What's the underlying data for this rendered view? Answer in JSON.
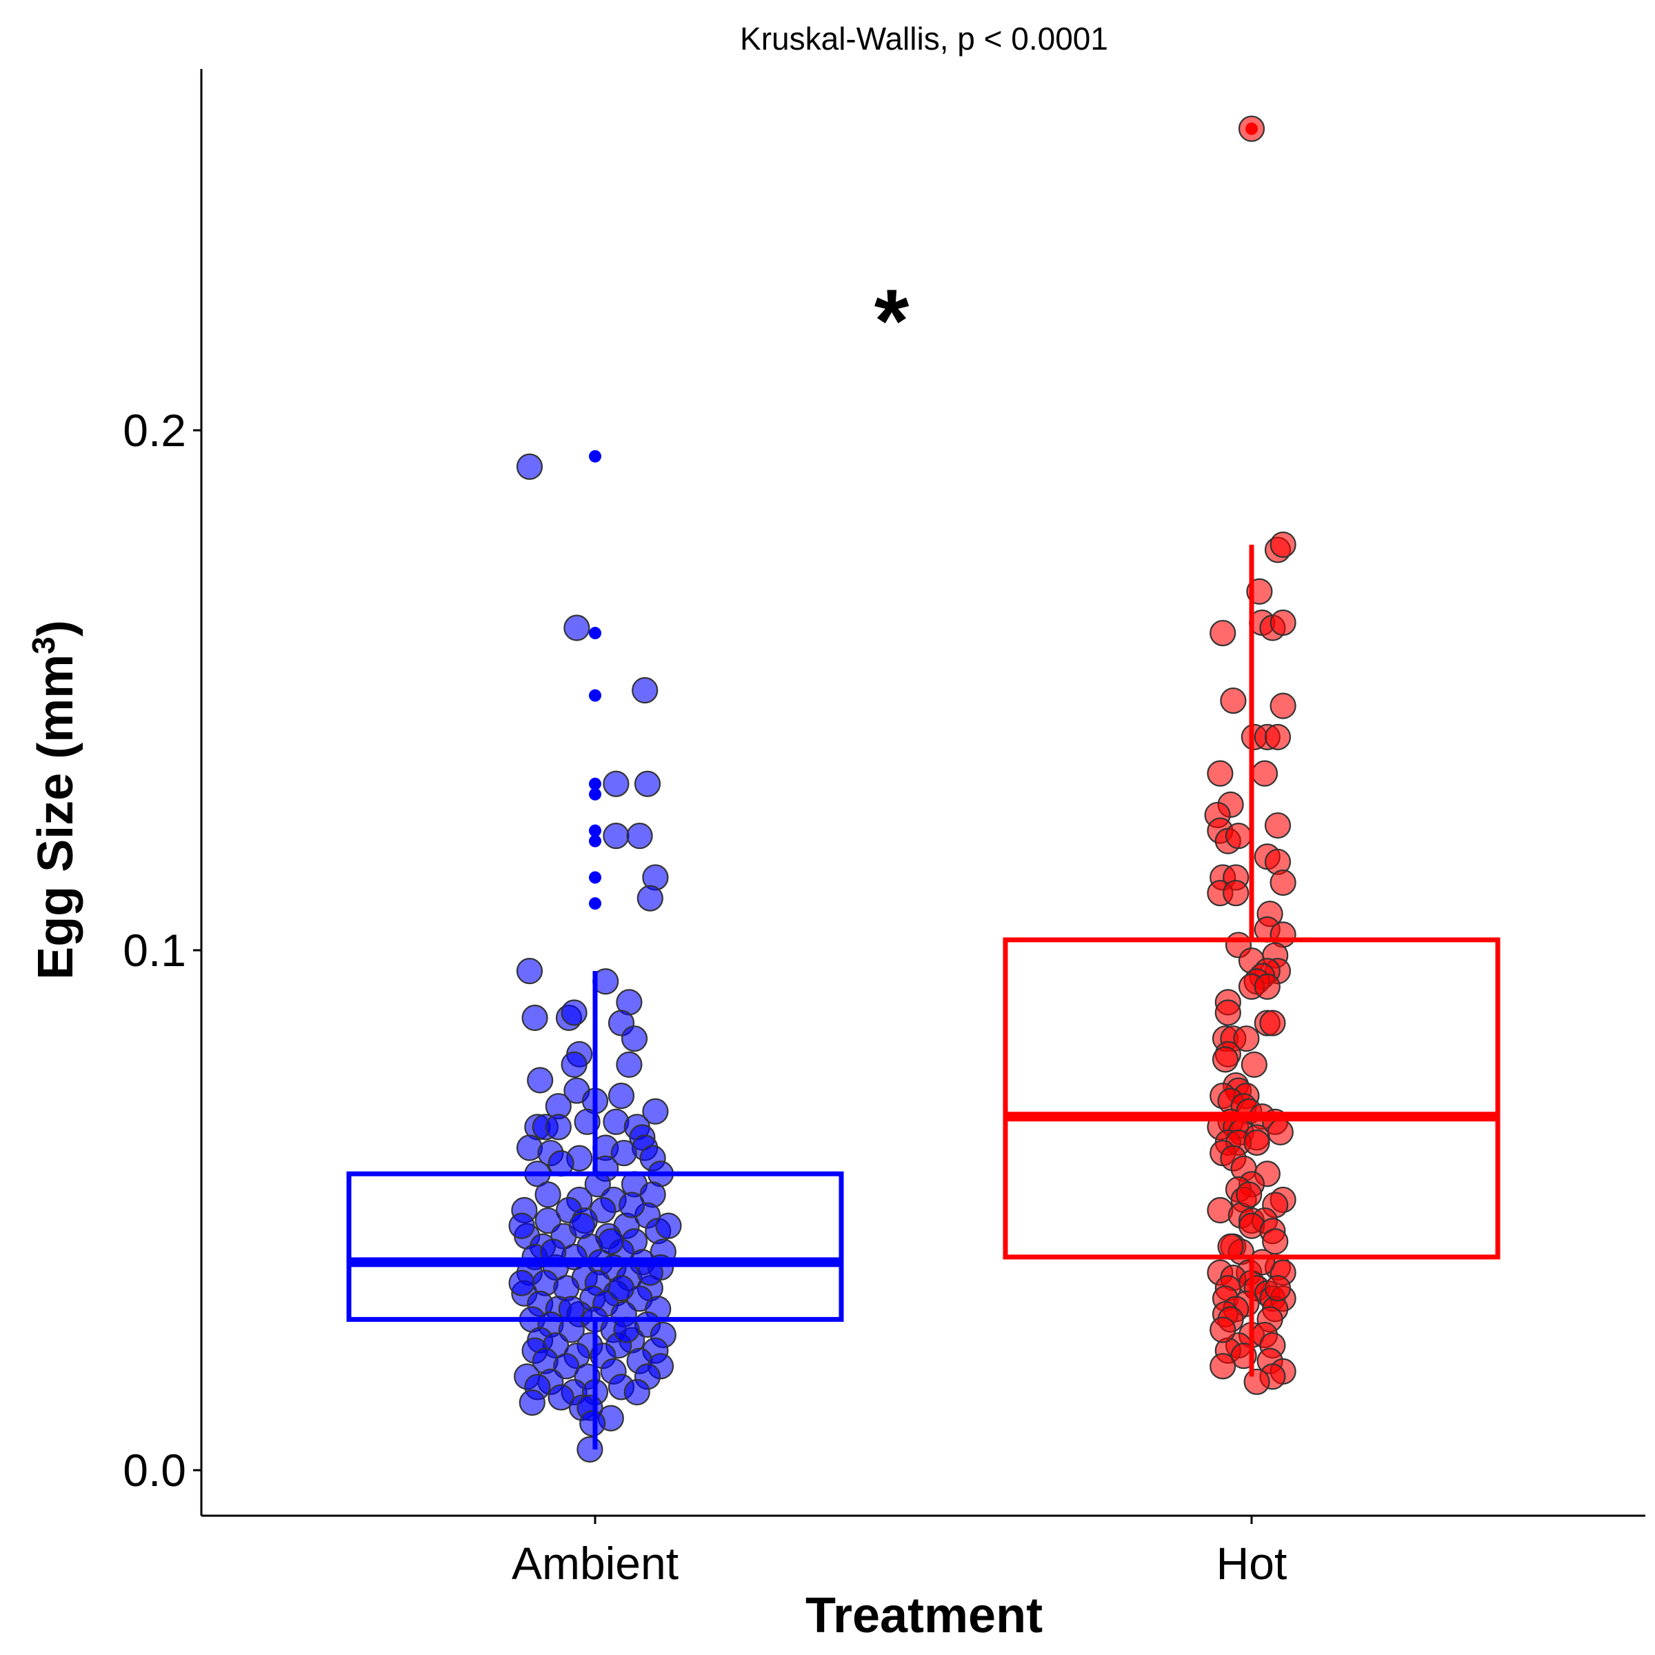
{
  "chart_data": {
    "type": "box",
    "subtitle": "Kruskal-Wallis, p < 0.0001",
    "significance_label": "*",
    "xlabel": "Treatment",
    "ylabel": "Egg Size (mm",
    "ylabel_superscript": "3",
    "ylabel_close": ")",
    "ylim": [
      -0.008,
      0.265
    ],
    "yticks": [
      0.0,
      0.1,
      0.2
    ],
    "ytick_labels": [
      "0.0",
      "0.1",
      "0.2"
    ],
    "categories": [
      "Ambient",
      "Hot"
    ],
    "groups": [
      {
        "name": "Ambient",
        "color": "#0000ff",
        "box": {
          "lower_whisker": 0.004,
          "q1": 0.029,
          "median": 0.04,
          "q3": 0.057,
          "upper_whisker": 0.096
        },
        "outliers": [
          0.195,
          0.161,
          0.149,
          0.132,
          0.13,
          0.123,
          0.121,
          0.114,
          0.109
        ],
        "points": [
          [
            -0.25,
            0.193
          ],
          [
            -0.07,
            0.162
          ],
          [
            0.19,
            0.15
          ],
          [
            0.08,
            0.132
          ],
          [
            0.2,
            0.132
          ],
          [
            0.08,
            0.122
          ],
          [
            0.17,
            0.122
          ],
          [
            0.23,
            0.114
          ],
          [
            0.21,
            0.11
          ],
          [
            -0.25,
            0.096
          ],
          [
            0.04,
            0.094
          ],
          [
            -0.23,
            0.087
          ],
          [
            -0.1,
            0.087
          ],
          [
            0.13,
            0.09
          ],
          [
            -0.08,
            0.088
          ],
          [
            0.1,
            0.086
          ],
          [
            0.15,
            0.083
          ],
          [
            -0.06,
            0.08
          ],
          [
            -0.08,
            0.078
          ],
          [
            0.13,
            0.078
          ],
          [
            -0.21,
            0.075
          ],
          [
            -0.07,
            0.073
          ],
          [
            0.1,
            0.072
          ],
          [
            0.0,
            0.071
          ],
          [
            -0.14,
            0.07
          ],
          [
            0.23,
            0.069
          ],
          [
            0.08,
            0.067
          ],
          [
            -0.03,
            0.067
          ],
          [
            -0.22,
            0.066
          ],
          [
            -0.19,
            0.066
          ],
          [
            -0.14,
            0.066
          ],
          [
            0.16,
            0.066
          ],
          [
            0.18,
            0.064
          ],
          [
            -0.25,
            0.062
          ],
          [
            0.04,
            0.062
          ],
          [
            0.19,
            0.062
          ],
          [
            -0.17,
            0.061
          ],
          [
            0.11,
            0.061
          ],
          [
            -0.06,
            0.06
          ],
          [
            0.22,
            0.06
          ],
          [
            -0.13,
            0.059
          ],
          [
            0.04,
            0.058
          ],
          [
            -0.22,
            0.057
          ],
          [
            0.25,
            0.057
          ],
          [
            0.01,
            0.055
          ],
          [
            0.15,
            0.055
          ],
          [
            -0.18,
            0.053
          ],
          [
            0.22,
            0.053
          ],
          [
            -0.06,
            0.052
          ],
          [
            0.07,
            0.052
          ],
          [
            -0.27,
            0.05
          ],
          [
            -0.1,
            0.05
          ],
          [
            0.03,
            0.05
          ],
          [
            0.2,
            0.049
          ],
          [
            -0.18,
            0.048
          ],
          [
            -0.04,
            0.048
          ],
          [
            0.12,
            0.047
          ],
          [
            0.24,
            0.046
          ],
          [
            -0.26,
            0.045
          ],
          [
            -0.12,
            0.045
          ],
          [
            0.05,
            0.045
          ],
          [
            0.15,
            0.044
          ],
          [
            -0.2,
            0.043
          ],
          [
            -0.02,
            0.043
          ],
          [
            0.1,
            0.042
          ],
          [
            0.26,
            0.042
          ],
          [
            -0.23,
            0.041
          ],
          [
            -0.08,
            0.041
          ],
          [
            0.02,
            0.04
          ],
          [
            0.18,
            0.04
          ],
          [
            -0.15,
            0.039
          ],
          [
            0.07,
            0.039
          ],
          [
            0.25,
            0.039
          ],
          [
            -0.25,
            0.038
          ],
          [
            -0.04,
            0.037
          ],
          [
            0.13,
            0.037
          ],
          [
            -0.19,
            0.036
          ],
          [
            0.01,
            0.036
          ],
          [
            0.21,
            0.035
          ],
          [
            -0.11,
            0.035
          ],
          [
            0.08,
            0.034
          ],
          [
            -0.27,
            0.034
          ],
          [
            -0.01,
            0.033
          ],
          [
            0.17,
            0.033
          ],
          [
            -0.21,
            0.032
          ],
          [
            0.04,
            0.032
          ],
          [
            0.24,
            0.031
          ],
          [
            -0.14,
            0.031
          ],
          [
            -0.06,
            0.03
          ],
          [
            0.11,
            0.03
          ],
          [
            -0.24,
            0.029
          ],
          [
            0.0,
            0.029
          ],
          [
            0.2,
            0.028
          ],
          [
            -0.17,
            0.028
          ],
          [
            0.07,
            0.027
          ],
          [
            -0.09,
            0.027
          ],
          [
            0.26,
            0.026
          ],
          [
            -0.21,
            0.025
          ],
          [
            0.14,
            0.025
          ],
          [
            -0.02,
            0.024
          ],
          [
            -0.15,
            0.024
          ],
          [
            0.09,
            0.024
          ],
          [
            -0.23,
            0.023
          ],
          [
            0.23,
            0.023
          ],
          [
            -0.07,
            0.022
          ],
          [
            0.03,
            0.022
          ],
          [
            0.17,
            0.021
          ],
          [
            -0.19,
            0.021
          ],
          [
            -0.11,
            0.02
          ],
          [
            0.25,
            0.02
          ],
          [
            0.07,
            0.019
          ],
          [
            -0.26,
            0.018
          ],
          [
            -0.03,
            0.018
          ],
          [
            0.2,
            0.018
          ],
          [
            -0.17,
            0.017
          ],
          [
            0.1,
            0.016
          ],
          [
            -0.22,
            0.016
          ],
          [
            -0.08,
            0.015
          ],
          [
            0.0,
            0.015
          ],
          [
            0.16,
            0.015
          ],
          [
            -0.13,
            0.014
          ],
          [
            -0.24,
            0.013
          ],
          [
            -0.05,
            0.012
          ],
          [
            -0.02,
            0.012
          ],
          [
            0.06,
            0.01
          ],
          [
            -0.01,
            0.009
          ],
          [
            -0.02,
            0.004
          ],
          [
            0.1,
            0.035
          ],
          [
            -0.05,
            0.047
          ],
          [
            0.14,
            0.051
          ],
          [
            -0.28,
            0.047
          ],
          [
            0.28,
            0.047
          ],
          [
            -0.09,
            0.031
          ],
          [
            0.12,
            0.027
          ],
          [
            -0.16,
            0.042
          ],
          [
            0.06,
            0.044
          ],
          [
            0.21,
            0.038
          ],
          [
            -0.28,
            0.036
          ]
        ]
      },
      {
        "name": "Hot",
        "color": "#ff0000",
        "box": {
          "lower_whisker": 0.018,
          "q1": 0.041,
          "median": 0.068,
          "q3": 0.102,
          "upper_whisker": 0.178
        },
        "outliers": [
          0.258
        ],
        "points": [
          [
            0.0,
            0.258
          ],
          [
            0.1,
            0.177
          ],
          [
            0.12,
            0.178
          ],
          [
            0.03,
            0.169
          ],
          [
            0.04,
            0.163
          ],
          [
            -0.11,
            0.161
          ],
          [
            0.08,
            0.162
          ],
          [
            0.12,
            0.163
          ],
          [
            -0.07,
            0.148
          ],
          [
            0.12,
            0.147
          ],
          [
            0.01,
            0.141
          ],
          [
            0.06,
            0.141
          ],
          [
            0.1,
            0.141
          ],
          [
            -0.12,
            0.134
          ],
          [
            0.05,
            0.134
          ],
          [
            -0.08,
            0.128
          ],
          [
            -0.13,
            0.126
          ],
          [
            0.1,
            0.124
          ],
          [
            -0.12,
            0.123
          ],
          [
            -0.09,
            0.121
          ],
          [
            -0.05,
            0.122
          ],
          [
            0.06,
            0.118
          ],
          [
            0.1,
            0.117
          ],
          [
            -0.11,
            0.114
          ],
          [
            -0.06,
            0.114
          ],
          [
            0.12,
            0.113
          ],
          [
            -0.12,
            0.111
          ],
          [
            -0.06,
            0.111
          ],
          [
            0.07,
            0.107
          ],
          [
            0.06,
            0.104
          ],
          [
            0.12,
            0.103
          ],
          [
            -0.05,
            0.101
          ],
          [
            0.09,
            0.099
          ],
          [
            0.0,
            0.098
          ],
          [
            0.1,
            0.096
          ],
          [
            0.06,
            0.096
          ],
          [
            0.04,
            0.095
          ],
          [
            0.02,
            0.094
          ],
          [
            0.0,
            0.093
          ],
          [
            0.06,
            0.093
          ],
          [
            -0.09,
            0.09
          ],
          [
            -0.09,
            0.088
          ],
          [
            0.06,
            0.086
          ],
          [
            0.08,
            0.086
          ],
          [
            -0.1,
            0.083
          ],
          [
            -0.07,
            0.083
          ],
          [
            -0.02,
            0.083
          ],
          [
            -0.09,
            0.08
          ],
          [
            -0.1,
            0.079
          ],
          [
            0.01,
            0.078
          ],
          [
            -0.06,
            0.074
          ],
          [
            -0.05,
            0.073
          ],
          [
            -0.11,
            0.072
          ],
          [
            -0.02,
            0.072
          ],
          [
            -0.08,
            0.071
          ],
          [
            -0.03,
            0.07
          ],
          [
            -0.01,
            0.069
          ],
          [
            0.04,
            0.068
          ],
          [
            -0.08,
            0.067
          ],
          [
            0.09,
            0.067
          ],
          [
            -0.12,
            0.066
          ],
          [
            -0.06,
            0.066
          ],
          [
            -0.04,
            0.065
          ],
          [
            0.02,
            0.064
          ],
          [
            0.11,
            0.065
          ],
          [
            -0.09,
            0.063
          ],
          [
            -0.05,
            0.063
          ],
          [
            0.02,
            0.063
          ],
          [
            -0.11,
            0.061
          ],
          [
            -0.07,
            0.06
          ],
          [
            -0.03,
            0.058
          ],
          [
            0.06,
            0.057
          ],
          [
            0.0,
            0.055
          ],
          [
            -0.05,
            0.054
          ],
          [
            0.12,
            0.052
          ],
          [
            -0.03,
            0.052
          ],
          [
            0.09,
            0.051
          ],
          [
            -0.12,
            0.05
          ],
          [
            -0.04,
            0.049
          ],
          [
            0.0,
            0.048
          ],
          [
            0.05,
            0.048
          ],
          [
            0.0,
            0.047
          ],
          [
            0.08,
            0.046
          ],
          [
            0.09,
            0.044
          ],
          [
            -0.07,
            0.043
          ],
          [
            -0.04,
            0.042
          ],
          [
            -0.08,
            0.043
          ],
          [
            0.1,
            0.039
          ],
          [
            -0.01,
            0.038
          ],
          [
            -0.12,
            0.038
          ],
          [
            0.12,
            0.038
          ],
          [
            -0.07,
            0.037
          ],
          [
            0.0,
            0.036
          ],
          [
            -0.09,
            0.035
          ],
          [
            0.02,
            0.035
          ],
          [
            0.06,
            0.034
          ],
          [
            0.08,
            0.033
          ],
          [
            -0.1,
            0.033
          ],
          [
            0.12,
            0.033
          ],
          [
            -0.02,
            0.032
          ],
          [
            -0.06,
            0.031
          ],
          [
            0.09,
            0.031
          ],
          [
            -0.1,
            0.03
          ],
          [
            0.07,
            0.029
          ],
          [
            -0.08,
            0.029
          ],
          [
            0.0,
            0.026
          ],
          [
            0.05,
            0.026
          ],
          [
            -0.05,
            0.024
          ],
          [
            0.08,
            0.024
          ],
          [
            -0.09,
            0.023
          ],
          [
            -0.03,
            0.022
          ],
          [
            0.07,
            0.021
          ],
          [
            -0.11,
            0.02
          ],
          [
            0.12,
            0.019
          ],
          [
            0.08,
            0.018
          ],
          [
            0.02,
            0.017
          ],
          [
            0.1,
            0.035
          ],
          [
            -0.11,
            0.027
          ],
          [
            0.04,
            0.04
          ],
          [
            -0.01,
            0.053
          ]
        ]
      }
    ]
  }
}
